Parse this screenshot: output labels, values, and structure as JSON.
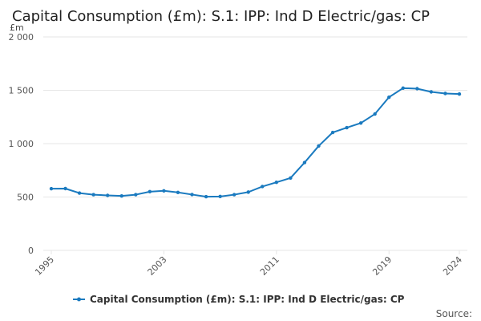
{
  "chart_data": {
    "type": "line",
    "title": "Capital Consumption (£m): S.1: IPP: Ind D Electric/gas: CP",
    "unit_label": "£m",
    "xlabel": "",
    "ylabel": "£m",
    "ylim": [
      0,
      2000
    ],
    "y_ticks": [
      0,
      500,
      1000,
      1500,
      2000
    ],
    "y_tick_labels": [
      "0",
      "500",
      "1 000",
      "1 500",
      "2 000"
    ],
    "x_tick_labels": [
      "1995",
      "2003",
      "2011",
      "2019",
      "2024"
    ],
    "x": [
      1995,
      1996,
      1997,
      1998,
      1999,
      2000,
      2001,
      2002,
      2003,
      2004,
      2005,
      2006,
      2007,
      2008,
      2009,
      2010,
      2011,
      2012,
      2013,
      2014,
      2015,
      2016,
      2017,
      2018,
      2019,
      2020,
      2021,
      2022,
      2023,
      2024
    ],
    "series": [
      {
        "name": "Capital Consumption (£m): S.1: IPP: Ind D Electric/gas: CP",
        "color": "#1a7abf",
        "values": [
          578,
          579,
          537,
          522,
          515,
          510,
          522,
          550,
          558,
          543,
          523,
          503,
          505,
          522,
          546,
          598,
          638,
          678,
          823,
          978,
          1105,
          1150,
          1193,
          1278,
          1435,
          1520,
          1515,
          1485,
          1470,
          1465
        ]
      }
    ],
    "legend": "bottom",
    "grid": true,
    "source_label": "Source:"
  }
}
